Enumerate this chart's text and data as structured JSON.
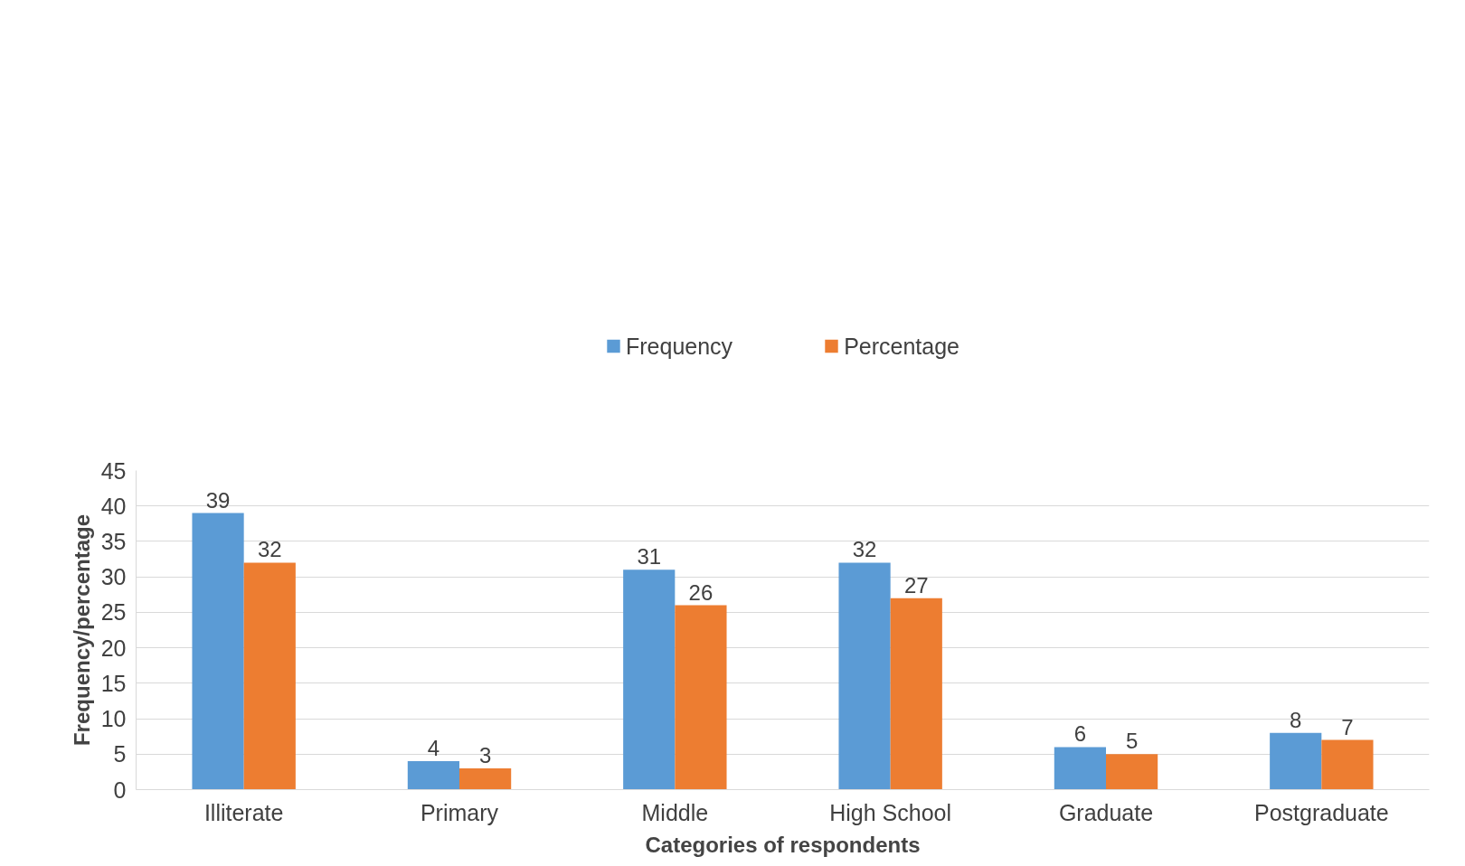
{
  "chart_data": {
    "type": "bar",
    "xlabel": "Categories of respondents",
    "ylabel": "Frequency/percentage",
    "categories": [
      "Illiterate",
      "Primary",
      "Middle",
      "High School",
      "Graduate",
      "Postgraduate"
    ],
    "series": [
      {
        "name": "Frequency",
        "color": "#5b9bd5",
        "values": [
          39,
          4,
          31,
          32,
          6,
          8
        ]
      },
      {
        "name": "Percentage",
        "color": "#ed7d31",
        "values": [
          32,
          3,
          26,
          27,
          5,
          7
        ]
      }
    ],
    "ylim": [
      0,
      45
    ],
    "yticks": [
      0,
      5,
      10,
      15,
      20,
      25,
      30,
      35,
      40,
      45
    ],
    "grid": "y",
    "legend": "top",
    "data_labels": true
  }
}
